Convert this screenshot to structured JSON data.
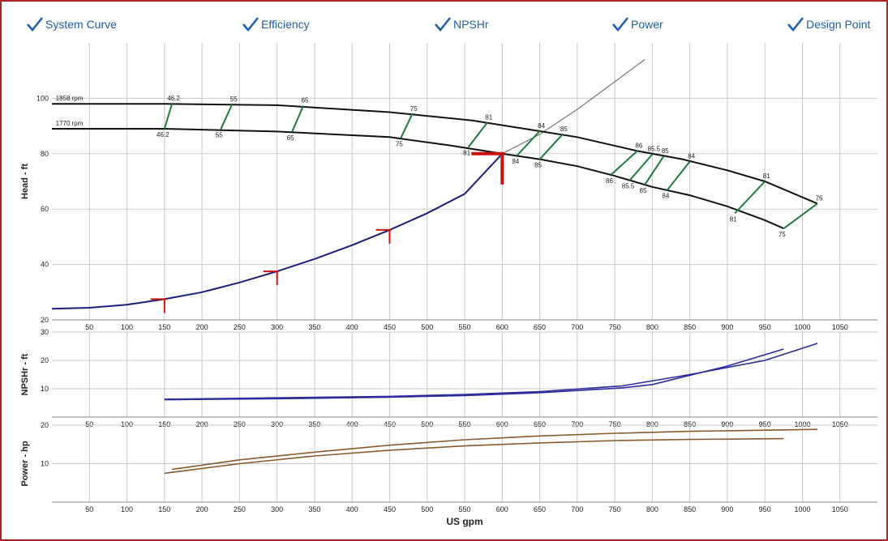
{
  "toggles": [
    {
      "label": "System Curve"
    },
    {
      "label": "Efficiency"
    },
    {
      "label": "NPSHr"
    },
    {
      "label": "Power"
    },
    {
      "label": "Design Point"
    }
  ],
  "colors": {
    "frame": "#b22222",
    "toggle": "#1f5ea8",
    "pump": "#111111",
    "system": "#1c1c7a",
    "efficiency": "#1f7a3f",
    "design": "#cc1111",
    "npsh": "#2a2a9c",
    "power": "#8a5a2b",
    "grid": "#c8c8c8"
  },
  "chart_data": {
    "type": "line",
    "xlabel": "US gpm",
    "x_ticks": [
      50,
      100,
      150,
      200,
      250,
      300,
      350,
      400,
      450,
      500,
      550,
      600,
      650,
      700,
      750,
      800,
      850,
      900,
      950,
      1000,
      1050
    ],
    "xlim": [
      0,
      1100
    ],
    "panels": [
      {
        "name": "head",
        "ylabel": "Head - ft",
        "ylim": [
          20,
          120
        ],
        "y_ticks": [
          20,
          40,
          60,
          80,
          100
        ],
        "speed_labels": [
          "1858 rpm",
          "1770 rpm"
        ],
        "pump_curves": [
          {
            "name": "1858 rpm",
            "x": [
              0,
              150,
              300,
              450,
              560,
              630,
              700,
              780,
              840,
              900,
              950,
              1020
            ],
            "y": [
              98,
              98,
              97.5,
              95,
              92,
              89,
              86,
              81,
              78,
              74,
              70,
              62
            ]
          },
          {
            "name": "1770 rpm",
            "x": [
              0,
              150,
              300,
              450,
              530,
              600,
              650,
              700,
              750,
              800,
              850,
              900,
              950,
              975
            ],
            "y": [
              89,
              89,
              88,
              86,
              83,
              80,
              78,
              75.5,
              72,
              68,
              65,
              61,
              56,
              53
            ]
          }
        ],
        "system_curve": {
          "x": [
            0,
            50,
            100,
            150,
            200,
            250,
            300,
            350,
            400,
            450,
            500,
            550,
            600,
            650,
            700,
            750,
            790
          ],
          "y": [
            24,
            24.4,
            25.5,
            27.5,
            30,
            33.5,
            37.5,
            42,
            47,
            52.5,
            58.5,
            65.5,
            80,
            87,
            96,
            106,
            114
          ]
        },
        "system_markers": [
          {
            "x": 150,
            "y": 27.5
          },
          {
            "x": 300,
            "y": 37.5
          },
          {
            "x": 450,
            "y": 52.5
          }
        ],
        "design_point": {
          "x": 600,
          "y": 80
        },
        "efficiency_lines": [
          {
            "upper_label": "46.2",
            "lower_label": "46.2",
            "x_upper": 160,
            "y_upper": 98,
            "x_lower": 150,
            "y_lower": 89
          },
          {
            "upper_label": "55",
            "lower_label": "55",
            "x_upper": 240,
            "y_upper": 97.8,
            "x_lower": 225,
            "y_lower": 88.8
          },
          {
            "upper_label": "65",
            "lower_label": "65",
            "x_upper": 335,
            "y_upper": 97.3,
            "x_lower": 320,
            "y_lower": 87.9
          },
          {
            "upper_label": "75",
            "lower_label": "75",
            "x_upper": 480,
            "y_upper": 94.3,
            "x_lower": 465,
            "y_lower": 85.7
          },
          {
            "upper_label": "81",
            "lower_label": "81",
            "x_upper": 580,
            "y_upper": 91.2,
            "x_lower": 555,
            "y_lower": 82.4
          },
          {
            "upper_label": "84",
            "lower_label": "84",
            "x_upper": 650,
            "y_upper": 88.2,
            "x_lower": 620,
            "y_lower": 79.4
          },
          {
            "upper_label": "85",
            "lower_label": "85",
            "x_upper": 680,
            "y_upper": 86.9,
            "x_lower": 650,
            "y_lower": 78
          },
          {
            "upper_label": "86",
            "lower_label": "86",
            "x_upper": 780,
            "y_upper": 81,
            "x_lower": 745,
            "y_lower": 72.4
          },
          {
            "upper_label": "85.5",
            "lower_label": "85.5",
            "x_upper": 800,
            "y_upper": 79.8,
            "x_lower": 770,
            "y_lower": 70.4
          },
          {
            "upper_label": "85",
            "lower_label": "85",
            "x_upper": 815,
            "y_upper": 79,
            "x_lower": 790,
            "y_lower": 68.8
          },
          {
            "upper_label": "84",
            "lower_label": "84",
            "x_upper": 850,
            "y_upper": 77.2,
            "x_lower": 820,
            "y_lower": 66.9
          },
          {
            "upper_label": "81",
            "lower_label": "81",
            "x_upper": 950,
            "y_upper": 70,
            "x_lower": 910,
            "y_lower": 58.5
          },
          {
            "upper_label": "75",
            "lower_label": "75",
            "x_upper": 1020,
            "y_upper": 62,
            "x_lower": 975,
            "y_lower": 53
          }
        ]
      },
      {
        "name": "npshr",
        "ylabel": "NPSHr - ft",
        "ylim": [
          0,
          30
        ],
        "y_ticks": [
          10,
          20,
          30
        ],
        "series": [
          {
            "name": "1858 rpm",
            "x": [
              150,
              300,
              450,
              550,
              650,
              760,
              850,
              950,
              1020
            ],
            "y": [
              6.3,
              6.8,
              7.3,
              8,
              9,
              11,
              15,
              20,
              26
            ]
          },
          {
            "name": "1770 rpm",
            "x": [
              150,
              300,
              450,
              550,
              650,
              760,
              800,
              900,
              975
            ],
            "y": [
              6.1,
              6.5,
              7,
              7.6,
              8.6,
              10.3,
              11.5,
              18,
              24
            ]
          }
        ]
      },
      {
        "name": "power",
        "ylabel": "Power - hp",
        "ylim": [
          0,
          20
        ],
        "y_ticks": [
          10,
          20
        ],
        "series": [
          {
            "name": "1858 rpm",
            "x": [
              160,
              250,
              350,
              450,
              550,
              650,
              750,
              850,
              950,
              1020
            ],
            "y": [
              8.5,
              11,
              13,
              14.8,
              16.2,
              17.2,
              17.9,
              18.4,
              18.7,
              18.9
            ]
          },
          {
            "name": "1770 rpm",
            "x": [
              150,
              250,
              350,
              450,
              550,
              650,
              750,
              850,
              975
            ],
            "y": [
              7.5,
              10,
              12,
              13.5,
              14.6,
              15.4,
              16,
              16.3,
              16.5
            ]
          }
        ]
      }
    ]
  }
}
